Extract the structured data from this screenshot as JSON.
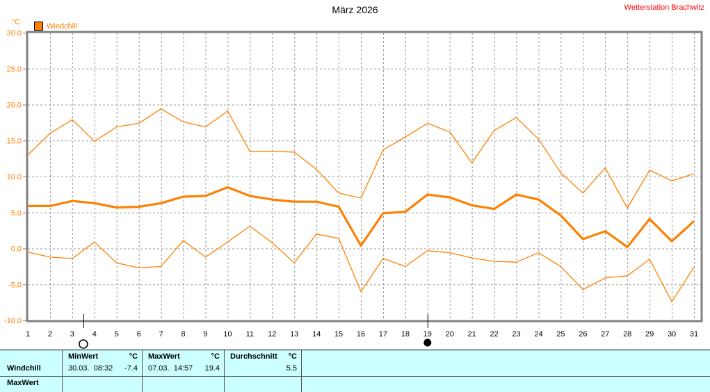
{
  "header": {
    "title": "März 2026",
    "station": "Wetterstation Brachwitz"
  },
  "legend": {
    "label": "Windchill",
    "color": "#ff8000"
  },
  "chart_data": {
    "type": "line",
    "title": "März 2026",
    "ylabel": "°C",
    "ylim": [
      -10,
      30
    ],
    "grid": true,
    "legend_position": "top-left",
    "line_color": "#ff8000",
    "y_tick_labels": [
      "30.0",
      "25.0",
      "20.0",
      "15.0",
      "10.0",
      "5.0",
      "0.0",
      "-5.0",
      "-10.0"
    ],
    "y_tick_values": [
      30,
      25,
      20,
      15,
      10,
      5,
      0,
      -5,
      -10
    ],
    "x_tick_labels": [
      "1",
      "2",
      "3",
      "4",
      "5",
      "6",
      "7",
      "8",
      "9",
      "10",
      "11",
      "12",
      "13",
      "14",
      "15",
      "16",
      "17",
      "18",
      "19",
      "20",
      "21",
      "22",
      "23",
      "24",
      "25",
      "26",
      "27",
      "28",
      "29",
      "30",
      "31"
    ],
    "x": [
      1,
      2,
      3,
      4,
      5,
      6,
      7,
      8,
      9,
      10,
      11,
      12,
      13,
      14,
      15,
      16,
      17,
      18,
      19,
      20,
      21,
      22,
      23,
      24,
      25,
      26,
      27,
      28,
      29,
      30,
      31
    ],
    "series": [
      {
        "name": "Windchill Maximum",
        "style": "thin",
        "values": [
          13.0,
          16.0,
          17.9,
          14.9,
          16.9,
          17.4,
          19.4,
          17.6,
          16.9,
          19.1,
          13.5,
          13.5,
          13.4,
          11.0,
          7.7,
          7.0,
          13.7,
          15.5,
          17.4,
          16.2,
          11.9,
          16.4,
          18.2,
          15.2,
          10.5,
          7.7,
          11.2,
          5.6,
          10.9,
          9.4,
          10.4
        ]
      },
      {
        "name": "Windchill Durchschnitt",
        "style": "thick",
        "values": [
          5.9,
          5.9,
          6.6,
          6.3,
          5.7,
          5.8,
          6.3,
          7.2,
          7.3,
          8.5,
          7.3,
          6.8,
          6.5,
          6.5,
          5.8,
          0.4,
          4.9,
          5.1,
          7.5,
          7.1,
          6.0,
          5.5,
          7.5,
          6.8,
          4.6,
          1.3,
          2.4,
          0.2,
          4.1,
          1.0,
          3.8
        ]
      },
      {
        "name": "Windchill Minimum",
        "style": "thin",
        "values": [
          -0.5,
          -1.2,
          -1.4,
          0.9,
          -2.0,
          -2.7,
          -2.5,
          1.1,
          -1.2,
          0.9,
          3.1,
          0.8,
          -2.0,
          2.0,
          1.4,
          -6.0,
          -1.4,
          -2.5,
          -0.3,
          -0.6,
          -1.3,
          -1.8,
          -1.9,
          -0.6,
          -2.5,
          -5.7,
          -4.1,
          -3.8,
          -1.5,
          -7.4,
          -2.6
        ]
      }
    ],
    "moon_markers": [
      {
        "day": 3.5,
        "phase": "full"
      },
      {
        "day": 19,
        "phase": "new"
      }
    ]
  },
  "table": {
    "header": {
      "min_label": "MinWert",
      "max_label": "MaxWert",
      "avg_label": "Durchschnitt",
      "unit": "°C"
    },
    "row": {
      "sensor": "Windchill",
      "min_time": "30.03.  08:32",
      "min_value": "-7.4",
      "max_time": "07.03.  14:57",
      "max_value": "19.4",
      "avg_value": "5.5"
    },
    "next_row_sensor": "MaxWert"
  }
}
